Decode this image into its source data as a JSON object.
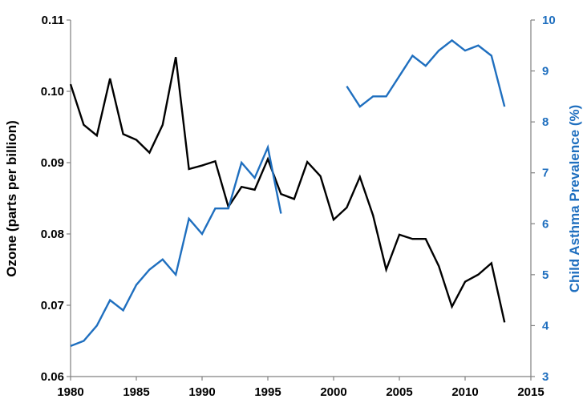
{
  "chart_data": {
    "type": "line",
    "title": "",
    "xlabel": "",
    "ylabel_left": "Ozone (parts per billion)",
    "ylabel_right": "Child Asthma Prevalence (%)",
    "xlim": [
      1980,
      2015
    ],
    "ylim_left": [
      0.06,
      0.11
    ],
    "ylim_right": [
      3,
      10
    ],
    "x_ticks": [
      "1980",
      "1985",
      "1990",
      "1995",
      "2000",
      "2005",
      "2010",
      "2015"
    ],
    "y_left_ticks": [
      "0.06",
      "0.07",
      "0.08",
      "0.09",
      "0.10",
      "0.11"
    ],
    "y_right_ticks": [
      "3",
      "4",
      "5",
      "6",
      "7",
      "8",
      "9",
      "10"
    ],
    "grid": false,
    "legend": "none",
    "colors": {
      "ozone": "#000000",
      "asthma": "#1f6fbf",
      "axis": "#808080"
    },
    "series": [
      {
        "axis": "left",
        "x": [
          1980,
          1981,
          1982,
          1983,
          1984,
          1985,
          1986,
          1987,
          1988,
          1989,
          1990,
          1991,
          1992,
          1993,
          1994,
          1995,
          1996,
          1997,
          1998,
          1999,
          2000,
          2001,
          2002,
          2003,
          2004,
          2005,
          2006,
          2007,
          2008,
          2009,
          2010,
          2011,
          2012,
          2013
        ],
        "values": [
          0.101,
          0.0953,
          0.0938,
          0.1018,
          0.094,
          0.0932,
          0.0914,
          0.0953,
          0.1048,
          0.0891,
          0.0896,
          0.0902,
          0.0838,
          0.0866,
          0.0862,
          0.0905,
          0.0856,
          0.0849,
          0.0901,
          0.0881,
          0.082,
          0.0837,
          0.088,
          0.0826,
          0.075,
          0.0799,
          0.0793,
          0.0793,
          0.0755,
          0.0698,
          0.0733,
          0.0743,
          0.0759,
          0.0676
        ]
      },
      {
        "axis": "right",
        "segments": [
          {
            "x": [
              1980,
              1981,
              1982,
              1983,
              1984,
              1985,
              1986,
              1987,
              1988,
              1989,
              1990,
              1991,
              1992,
              1993,
              1994,
              1995,
              1996
            ],
            "values": [
              3.6,
              3.7,
              4.0,
              4.5,
              4.3,
              4.8,
              5.1,
              5.3,
              5.0,
              6.1,
              5.8,
              6.3,
              6.3,
              7.2,
              6.9,
              7.5,
              6.2
            ]
          },
          {
            "x": [
              2001,
              2002,
              2003,
              2004,
              2005,
              2006,
              2007,
              2008,
              2009,
              2010,
              2011,
              2012,
              2013
            ],
            "values": [
              8.7,
              8.3,
              8.5,
              8.5,
              8.9,
              9.3,
              9.1,
              9.4,
              9.6,
              9.4,
              9.5,
              9.3,
              8.3
            ]
          }
        ]
      }
    ]
  }
}
